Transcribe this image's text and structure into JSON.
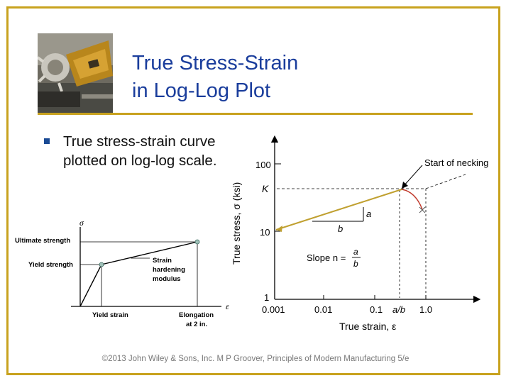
{
  "slide": {
    "title_line1": "True Stress-Strain",
    "title_line2": "in Log-Log Plot",
    "bullet": "True stress‑strain curve plotted on log‑log scale.",
    "footer": "©2013 John Wiley & Sons, Inc. M P Groover, Principles of Modern Manufacturing 5/e"
  },
  "photo": {
    "icon": "machining-tool-photo"
  },
  "colors": {
    "frame": "#c8a21e",
    "title": "#1a3d9c",
    "curve": "#c0a030",
    "necking_marker": "#c0392b"
  },
  "engineering_diagram": {
    "y_axis_label": "σ",
    "x_axis_label": "ε",
    "ultimate_strength": "Ultimate strength",
    "yield_strength": "Yield strength",
    "strain_hardening_1": "Strain",
    "strain_hardening_2": "hardening",
    "strain_hardening_3": "modulus",
    "yield_strain": "Yield strain",
    "elongation_1": "Elongation",
    "elongation_2": "at 2 in."
  },
  "loglog_diagram": {
    "y_axis_label": "True stress, σ (ksi)",
    "x_axis_label": "True strain, ε",
    "y_ticks": [
      "100",
      "K",
      "10",
      "1"
    ],
    "x_ticks": [
      "0.001",
      "0.01",
      "0.1",
      "a/b",
      "1.0"
    ],
    "necking_label": "Start of necking",
    "triangle_a": "a",
    "triangle_b": "b",
    "slope_label": "Slope n =",
    "slope_num": "a",
    "slope_den": "b"
  }
}
